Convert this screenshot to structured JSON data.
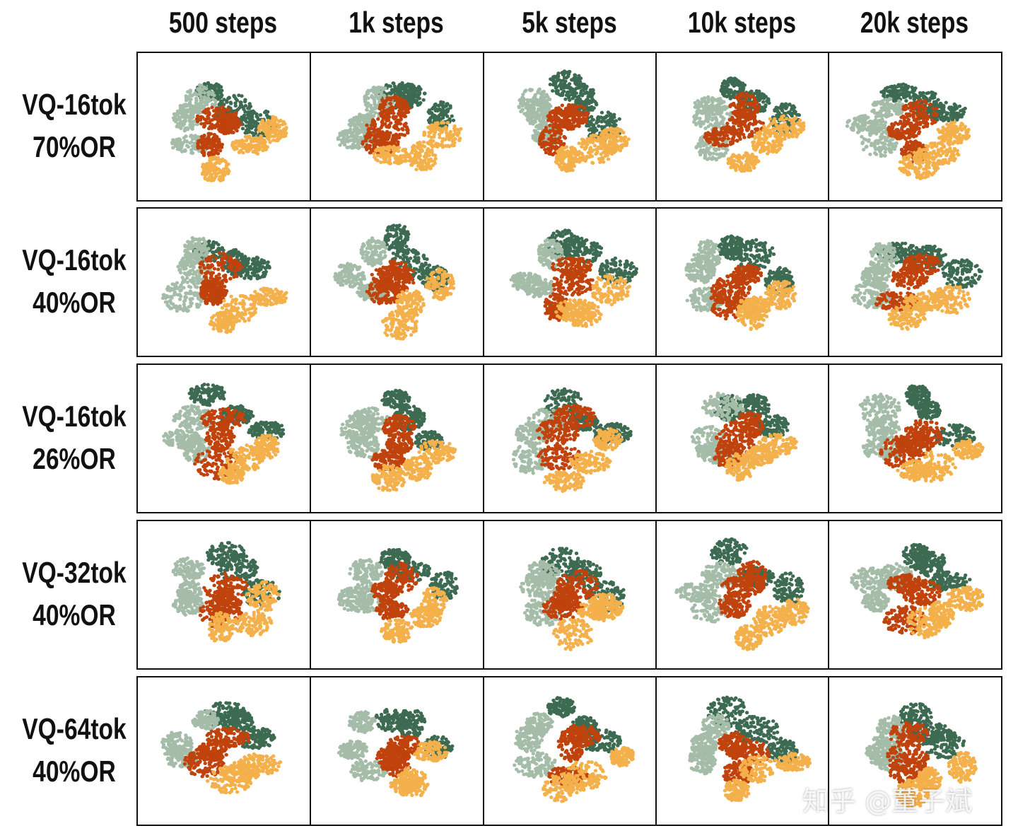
{
  "chart_data": {
    "type": "scatter",
    "title": "",
    "description_kind": "t-SNE grid",
    "columns": [
      "500 steps",
      "1k steps",
      "5k steps",
      "10k steps",
      "20k steps"
    ],
    "rows": [
      [
        "VQ-16tok",
        "70%OR"
      ],
      [
        "VQ-16tok",
        "40%OR"
      ],
      [
        "VQ-16tok",
        "26%OR"
      ],
      [
        "VQ-32tok",
        "40%OR"
      ],
      [
        "VQ-64tok",
        "40%OR"
      ]
    ],
    "series": [
      {
        "color": "#3d6b52"
      },
      {
        "color": "#a4bca8"
      },
      {
        "color": "#c0420c"
      },
      {
        "color": "#f4b04a"
      }
    ],
    "grid": false,
    "legend": "none"
  },
  "watermark": "知乎 @董子斌"
}
